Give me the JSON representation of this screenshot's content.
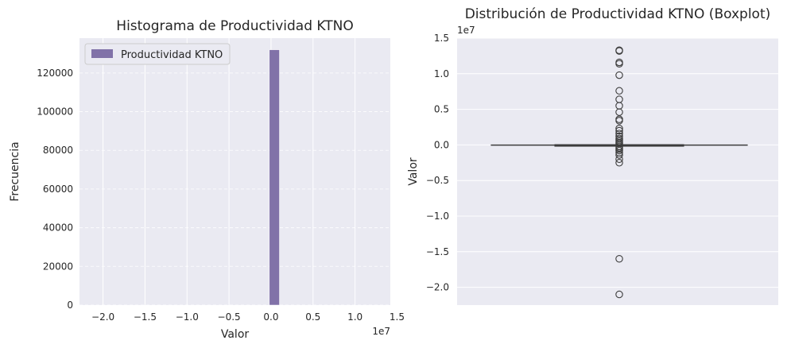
{
  "chart_data": [
    {
      "type": "bar",
      "subtype": "histogram",
      "title": "Histograma de Productividad KTNO",
      "xlabel": "Valor",
      "ylabel": "Frecuencia",
      "x_offset_label": "1e7",
      "xlim": [
        -2.28,
        1.42
      ],
      "ylim": [
        0,
        138000
      ],
      "x_ticks": [
        -2.0,
        -1.5,
        -1.0,
        -0.5,
        0.0,
        0.5,
        1.0,
        1.5
      ],
      "x_tick_labels": [
        "−2.0",
        "−1.5",
        "−1.0",
        "−0.5",
        "0.0",
        "0.5",
        "1.0",
        "1.5"
      ],
      "y_ticks": [
        0,
        20000,
        40000,
        60000,
        80000,
        100000,
        120000
      ],
      "y_tick_labels": [
        "0",
        "20000",
        "40000",
        "60000",
        "80000",
        "100000",
        "120000"
      ],
      "bins": [
        {
          "x0": -0.02,
          "x1": 0.1,
          "count": 132000
        }
      ],
      "legend": {
        "label": "Productividad KTNO",
        "placement": "top-left"
      },
      "bar_color": "#8172A8",
      "grid": true
    },
    {
      "type": "boxplot",
      "title": "Distribución de Productividad KTNO (Boxplot)",
      "ylabel": "Valor",
      "y_offset_label": "1e7",
      "ylim": [
        -2.25,
        1.5
      ],
      "y_ticks": [
        1.5,
        1.0,
        0.5,
        0.0,
        -0.5,
        -1.0,
        -1.5,
        -2.0
      ],
      "y_tick_labels": [
        "1.5",
        "1.0",
        "0.5",
        "0.0",
        "−0.5",
        "−1.0",
        "−1.5",
        "−2.0"
      ],
      "whiskers": [
        -0.002,
        0.002
      ],
      "box": [
        -0.001,
        0.001
      ],
      "median": 0.0,
      "outliers": [
        1.33,
        1.32,
        1.16,
        1.14,
        0.98,
        0.76,
        0.64,
        0.55,
        0.46,
        0.36,
        0.34,
        0.23,
        0.2,
        0.16,
        0.12,
        0.09,
        0.07,
        0.05,
        0.03,
        0.015,
        -0.02,
        -0.04,
        -0.06,
        -0.08,
        -0.11,
        -0.14,
        -0.2,
        -0.25,
        -1.6,
        -2.1
      ],
      "grid": true
    }
  ]
}
